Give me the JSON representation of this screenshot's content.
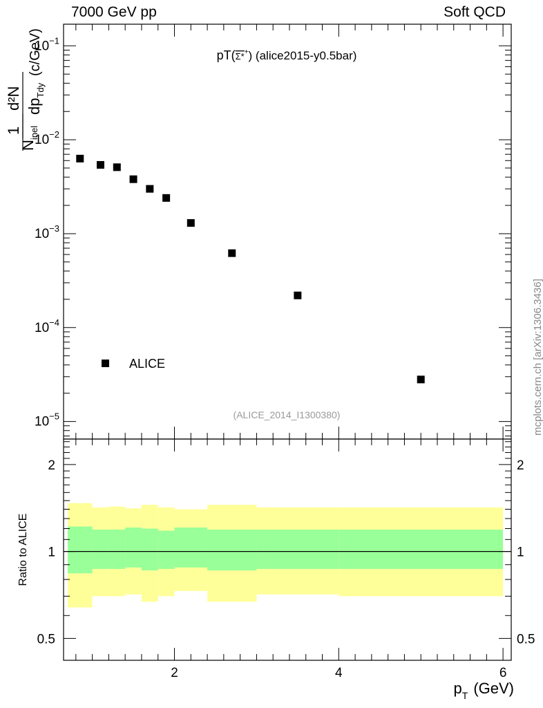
{
  "header": {
    "left": "7000 GeV pp",
    "right": "Soft QCD"
  },
  "side_note": "mcplots.cern.ch [arXiv:1306.3436]",
  "watermark": "(ALICE_2014_I1300380)",
  "colors": {
    "data": "#000000",
    "band_inner": "#99ff99",
    "band_outer": "#ffff99",
    "ref_line": "#000000",
    "watermark": "#999999"
  },
  "chart_data": [
    {
      "type": "scatter",
      "title": "pT(Σ*⁺) (alice2015-y0.5bar)",
      "title_main": "pT(",
      "title_particle": "Σ*",
      "title_charge": "+",
      "title_tail": ") (alice2015-y0.5bar)",
      "ylabel_parts": [
        "1",
        "N",
        "inel",
        "d²N",
        "dp",
        "Tdy",
        "(c/GeV)"
      ],
      "yscale": "log",
      "ylim": [
        6.5e-06,
        0.17
      ],
      "xlim": [
        0.65,
        6.1
      ],
      "yticks": [
        1e-05,
        0.0001,
        0.001,
        0.01,
        0.1
      ],
      "ytick_labels": [
        {
          "base": "10",
          "exp": "−5"
        },
        {
          "base": "10",
          "exp": "−4"
        },
        {
          "base": "10",
          "exp": "−3"
        },
        {
          "base": "10",
          "exp": "−2"
        },
        {
          "base": "10",
          "exp": "−1"
        }
      ],
      "legend": {
        "label": "ALICE",
        "position": "bottom-left"
      },
      "series": [
        {
          "name": "ALICE",
          "x": [
            0.85,
            1.1,
            1.3,
            1.5,
            1.7,
            1.9,
            2.2,
            2.7,
            3.5,
            5.0
          ],
          "y": [
            0.0063,
            0.0054,
            0.0051,
            0.0038,
            0.003,
            0.0024,
            0.0013,
            0.00062,
            0.00022,
            2.8e-05
          ]
        }
      ]
    },
    {
      "type": "area",
      "ylabel": "Ratio to ALICE",
      "xlabel_main": "p",
      "xlabel_sub": "T",
      "xlabel_unit": "(GeV)",
      "xlim": [
        0.65,
        6.1
      ],
      "ylim": [
        0.42,
        2.45
      ],
      "yscale": "log",
      "xticks": [
        2,
        4,
        6
      ],
      "xtick_labels": [
        "2",
        "4",
        "6"
      ],
      "yticks": [
        0.5,
        1,
        2
      ],
      "ytick_labels": [
        "0.5",
        "1",
        "2"
      ],
      "reference": 1.0,
      "bands": {
        "edges": [
          0.7,
          1.0,
          1.2,
          1.4,
          1.6,
          1.8,
          2.0,
          2.4,
          3.0,
          4.0,
          6.0
        ],
        "inner_low": [
          0.84,
          0.87,
          0.87,
          0.88,
          0.86,
          0.87,
          0.88,
          0.86,
          0.87,
          0.87
        ],
        "inner_high": [
          1.22,
          1.19,
          1.19,
          1.21,
          1.2,
          1.18,
          1.21,
          1.19,
          1.19,
          1.19
        ],
        "outer_low": [
          0.64,
          0.7,
          0.7,
          0.71,
          0.67,
          0.7,
          0.73,
          0.67,
          0.71,
          0.7
        ],
        "outer_high": [
          1.47,
          1.42,
          1.43,
          1.41,
          1.45,
          1.42,
          1.4,
          1.45,
          1.42,
          1.42
        ]
      }
    }
  ]
}
